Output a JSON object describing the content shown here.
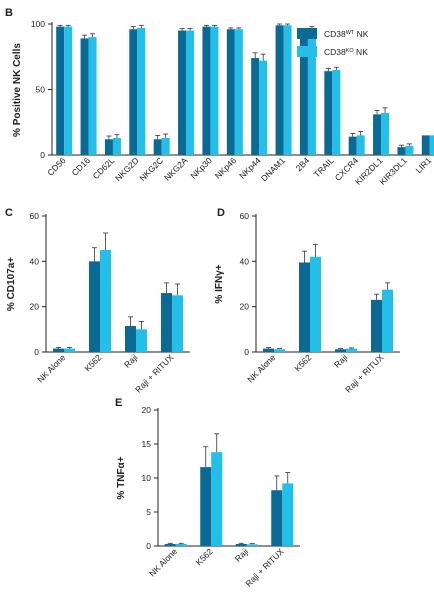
{
  "colors": {
    "wt": "#0b6a94",
    "ko": "#23bfe8",
    "axis": "#222222",
    "errorbar": "#333333"
  },
  "legend": {
    "wt_prefix": "CD38",
    "wt_sup": "WT",
    "wt_suffix": " NK",
    "ko_prefix": "CD38",
    "ko_sup": "KO",
    "ko_suffix": " NK"
  },
  "chart_data": [
    {
      "panel": "B",
      "type": "bar",
      "ylabel": "% Positive NK Cells",
      "ylim": [
        0,
        100
      ],
      "yticks": [
        0,
        50,
        100
      ],
      "categories": [
        "CD56",
        "CD16",
        "CD62L",
        "NKG2D",
        "NKG2C",
        "NKG2A",
        "NKp30",
        "NKp46",
        "NKp44",
        "DNAM1",
        "2B4",
        "TRAIL",
        "CXCR4",
        "KIR2DL1",
        "KIR3DL1",
        "LIR1"
      ],
      "series": [
        {
          "name": "CD38WT NK",
          "values": [
            98,
            89,
            12,
            96,
            12,
            95,
            98,
            96,
            74,
            99,
            94,
            64,
            14,
            31,
            6,
            15
          ],
          "errors": [
            1,
            2.5,
            2.5,
            2,
            3,
            1.5,
            1,
            1,
            4,
            1,
            2,
            2,
            2.5,
            3,
            1.5,
            0
          ]
        },
        {
          "name": "CD38KO NK",
          "values": [
            98,
            90,
            13,
            97,
            13,
            95,
            98,
            96,
            72,
            99,
            96,
            65,
            15,
            32,
            7,
            15
          ],
          "errors": [
            1,
            2.5,
            2.5,
            2,
            3,
            1.5,
            1,
            1,
            5,
            1,
            2,
            2,
            3,
            4,
            1.5,
            0
          ]
        }
      ]
    },
    {
      "panel": "C",
      "type": "bar",
      "ylabel": "% CD107a+",
      "ylim": [
        0,
        60
      ],
      "yticks": [
        0,
        20,
        40,
        60
      ],
      "categories": [
        "NK Alone",
        "K562",
        "Raji",
        "Raji + RITUX"
      ],
      "series": [
        {
          "name": "CD38WT NK",
          "values": [
            1.5,
            40,
            11.5,
            26
          ],
          "errors": [
            0.5,
            6,
            4,
            4.5
          ]
        },
        {
          "name": "CD38KO NK",
          "values": [
            1.5,
            45,
            10,
            25
          ],
          "errors": [
            0.5,
            7.5,
            3.5,
            5
          ]
        }
      ]
    },
    {
      "panel": "D",
      "type": "bar",
      "ylabel": "% IFNγ+",
      "ylim": [
        0,
        60
      ],
      "yticks": [
        0,
        20,
        40,
        60
      ],
      "categories": [
        "NK Alone",
        "K562",
        "Raji",
        "Raji + RITUX"
      ],
      "series": [
        {
          "name": "CD38WT NK",
          "values": [
            1.5,
            39.5,
            1.2,
            23
          ],
          "errors": [
            0.5,
            5,
            0.3,
            2.5
          ]
        },
        {
          "name": "CD38KO NK",
          "values": [
            1.2,
            42,
            1.5,
            27.5
          ],
          "errors": [
            0.3,
            5.5,
            0.3,
            3
          ]
        }
      ]
    },
    {
      "panel": "E",
      "type": "bar",
      "ylabel": "% TNFα+",
      "ylim": [
        0,
        20
      ],
      "yticks": [
        0,
        5,
        10,
        15,
        20
      ],
      "categories": [
        "NK Alone",
        "K562",
        "Raji",
        "Raji + RITUX"
      ],
      "series": [
        {
          "name": "CD38WT NK",
          "values": [
            0.3,
            11.6,
            0.3,
            8.2
          ],
          "errors": [
            0.1,
            3,
            0.1,
            2.1
          ]
        },
        {
          "name": "CD38KO NK",
          "values": [
            0.3,
            13.8,
            0.25,
            9.2
          ],
          "errors": [
            0.1,
            2.7,
            0.1,
            1.6
          ]
        }
      ]
    }
  ]
}
